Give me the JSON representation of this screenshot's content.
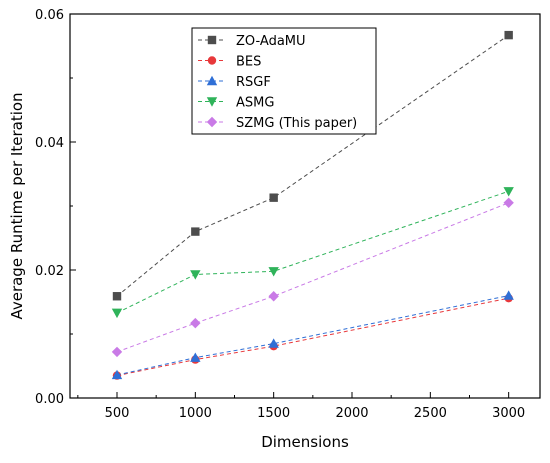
{
  "chart_data": {
    "type": "line",
    "title": "",
    "xlabel": "Dimensions",
    "ylabel": "Average Runtime per Iteration",
    "xlim": [
      200,
      3200
    ],
    "ylim": [
      0,
      0.06
    ],
    "xticks": [
      500,
      1000,
      1500,
      2000,
      2500,
      3000
    ],
    "yticks": [
      0.0,
      0.02,
      0.04,
      0.06
    ],
    "xtick_labels": [
      "500",
      "1000",
      "1500",
      "2000",
      "2500",
      "3000"
    ],
    "ytick_labels": [
      "0.00",
      "0.02",
      "0.04",
      "0.06"
    ],
    "grid": false,
    "legend_position": "top-center",
    "x": [
      500,
      1000,
      1500,
      3000
    ],
    "series": [
      {
        "name": "ZO-AdaMU",
        "values": [
          0.0159,
          0.026,
          0.0313,
          0.0567
        ],
        "color": "#4d4d4d",
        "marker": "square"
      },
      {
        "name": "BES",
        "values": [
          0.0035,
          0.006,
          0.0081,
          0.0156
        ],
        "color": "#e8383b",
        "marker": "circle"
      },
      {
        "name": "RSGF",
        "values": [
          0.0036,
          0.0063,
          0.0085,
          0.016
        ],
        "color": "#2f6fd6",
        "marker": "triangle-up"
      },
      {
        "name": "ASMG",
        "values": [
          0.0133,
          0.0193,
          0.0198,
          0.0323
        ],
        "color": "#2fb35a",
        "marker": "triangle-down"
      },
      {
        "name": "SZMG (This paper)",
        "values": [
          0.0072,
          0.0117,
          0.0159,
          0.0305
        ],
        "color": "#c97ae6",
        "marker": "diamond"
      }
    ]
  }
}
